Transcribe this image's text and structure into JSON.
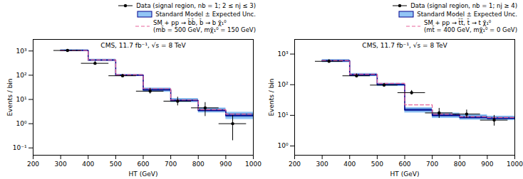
{
  "chart_data": [
    {
      "type": "histogram",
      "annotations": [
        "CMS, 11.7 fb⁻¹, √s = 8 TeV"
      ],
      "xlabel": "HT (GeV)",
      "ylabel": "Events / bin",
      "log": "y",
      "grid": false,
      "legend": "top",
      "bins": [
        300,
        400,
        500,
        600,
        700,
        800,
        900,
        1000
      ],
      "xlim": [
        200,
        1000
      ],
      "xticks": [
        200,
        300,
        400,
        500,
        600,
        700,
        800,
        900,
        1000
      ],
      "ylim": [
        0.05,
        3000
      ],
      "yticks": [
        {
          "value": 0.1,
          "label": "10⁻¹"
        },
        {
          "value": 1,
          "label": "10⁰"
        },
        {
          "value": 10,
          "label": "10¹"
        },
        {
          "value": 100,
          "label": "10²"
        },
        {
          "value": 1000,
          "label": "10³"
        }
      ],
      "series": [
        {
          "name": "Data (signal region, nb = 1; 2 ≤ nj ≤ 3)",
          "type": "scatter",
          "color": "black",
          "marker": "circle",
          "x": [
            325,
            425,
            525,
            625,
            725,
            825,
            925
          ],
          "values": [
            1050,
            310,
            95,
            22,
            8.5,
            4.5,
            1.0
          ],
          "xerr": [
            50,
            50,
            50,
            50,
            50,
            50,
            50
          ],
          "yerr_up": [
            110,
            55,
            15,
            7,
            4,
            3,
            1.2
          ],
          "yerr_dn": [
            95,
            45,
            13,
            5,
            3,
            2.5,
            0.8
          ]
        },
        {
          "name": "Standard Model ± Expected Unc.",
          "type": "step",
          "color": "#00008b",
          "line_style": "solid",
          "values": [
            1050,
            420,
            100,
            25,
            9.0,
            3.5,
            2.2
          ],
          "bands": [
            {
              "color": "#92c5f5",
              "lower": [
                950,
                380,
                90,
                20,
                7.5,
                2.8,
                1.5
              ],
              "upper": [
                1150,
                460,
                110,
                30,
                11.0,
                4.5,
                3.0
              ]
            },
            {
              "color": "#4472c4",
              "lower": [
                1000,
                400,
                95,
                22.5,
                8.25,
                3.15,
                1.85
              ],
              "upper": [
                1100,
                440,
                105,
                27.5,
                10,
                4,
                2.6
              ]
            }
          ]
        },
        {
          "name": "SM + pp → b̃b̃, b̃ → b χ̃₁⁰\n(mb̃ = 500 GeV, mχ̃₁⁰ = 150 GeV)",
          "type": "step",
          "color": "#e8649a",
          "line_style": "dashed",
          "values": [
            1060,
            430,
            105,
            28,
            9.5,
            3.8,
            2.5
          ]
        }
      ]
    },
    {
      "type": "histogram",
      "annotations": [
        "CMS, 11.7 fb⁻¹, √s = 8 TeV"
      ],
      "xlabel": "HT (GeV)",
      "ylabel": "Events / bin",
      "log": "y",
      "grid": false,
      "legend": "top",
      "bins": [
        300,
        400,
        500,
        600,
        700,
        800,
        900,
        1000
      ],
      "xlim": [
        200,
        1000
      ],
      "xticks": [
        200,
        300,
        400,
        500,
        600,
        700,
        800,
        900,
        1000
      ],
      "ylim": [
        0.5,
        3000
      ],
      "yticks": [
        {
          "value": 1,
          "label": "10⁰"
        },
        {
          "value": 10,
          "label": "10¹"
        },
        {
          "value": 100,
          "label": "10²"
        },
        {
          "value": 1000,
          "label": "10³"
        }
      ],
      "series": [
        {
          "name": "Data (signal region, nb = 1; nj ≥ 4)",
          "type": "scatter",
          "color": "black",
          "marker": "circle",
          "x": [
            325,
            425,
            525,
            625,
            725,
            825,
            925
          ],
          "values": [
            580,
            195,
            97,
            55,
            12,
            11,
            7.0
          ],
          "xerr": [
            50,
            50,
            50,
            50,
            50,
            50,
            50
          ],
          "yerr_up": [
            80,
            30,
            14,
            10,
            5,
            4,
            3
          ],
          "yerr_dn": [
            65,
            25,
            12,
            8,
            4,
            3,
            2.5
          ]
        },
        {
          "name": "Standard Model ± Expected Unc.",
          "type": "step",
          "color": "#00008b",
          "line_style": "solid",
          "values": [
            600,
            210,
            100,
            15,
            10.0,
            8.5,
            8.0
          ],
          "bands": [
            {
              "color": "#92c5f5",
              "lower": [
                530,
                185,
                88,
                12,
                8.0,
                7.0,
                6.8
              ],
              "upper": [
                670,
                235,
                112,
                18,
                12.0,
                10.5,
                9.5
              ]
            },
            {
              "color": "#4472c4",
              "lower": [
                565,
                197.5,
                94,
                13.5,
                9,
                7.75,
                7.4
              ],
              "upper": [
                635,
                222.5,
                106,
                16.5,
                11,
                9.5,
                8.75
              ]
            }
          ]
        },
        {
          "name": "SM + pp → t̃t̃, t̃ → t χ̃₁⁰\n(mt̃ = 400 GeV, mχ̃₁⁰ = 0 GeV)",
          "type": "step",
          "color": "#e8649a",
          "line_style": "dashed",
          "values": [
            620,
            220,
            110,
            22,
            11.0,
            9.0,
            8.5
          ]
        }
      ]
    }
  ]
}
